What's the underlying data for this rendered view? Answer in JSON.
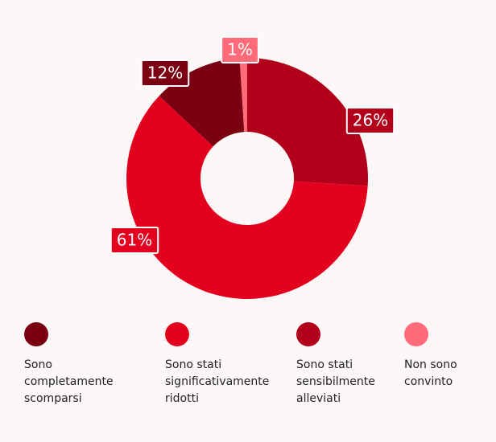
{
  "chart_data": {
    "type": "donut",
    "categories": [
      "Sono completamente scomparsi",
      "Sono stati significativamente ridotti",
      "Sono stati sensibilmente alleviati",
      "Non sono convinto"
    ],
    "values": [
      12,
      61,
      26,
      1
    ],
    "value_labels": [
      "12%",
      "61%",
      "26%",
      "1%"
    ],
    "colors": [
      "#7a0012",
      "#e3001f",
      "#b2001b",
      "#ff6b78"
    ]
  }
}
